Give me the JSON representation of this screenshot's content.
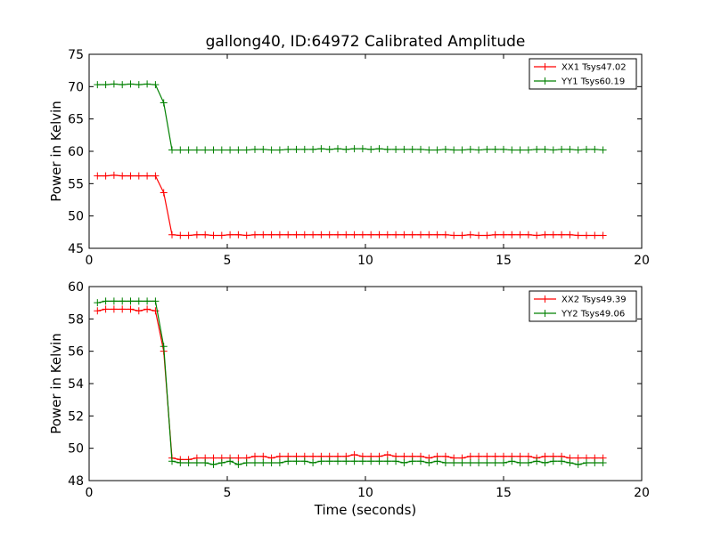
{
  "chart_data": [
    {
      "type": "line",
      "title": "gallong40, ID:64972 Calibrated Amplitude",
      "xlabel": "",
      "ylabel": "Power in Kelvin",
      "xlim": [
        0,
        20
      ],
      "ylim": [
        45,
        75
      ],
      "xticks": [
        "0",
        "5",
        "10",
        "15",
        "20"
      ],
      "yticks": [
        "45",
        "50",
        "55",
        "60",
        "65",
        "70",
        "75"
      ],
      "legend_position": "top-right",
      "x": [
        0.3,
        0.6,
        0.9,
        1.2,
        1.5,
        1.8,
        2.1,
        2.4,
        2.7,
        3.0,
        3.3,
        3.6,
        3.9,
        4.2,
        4.5,
        4.8,
        5.1,
        5.4,
        5.7,
        6.0,
        6.3,
        6.6,
        6.9,
        7.2,
        7.5,
        7.8,
        8.1,
        8.4,
        8.7,
        9.0,
        9.3,
        9.6,
        9.9,
        10.2,
        10.5,
        10.8,
        11.1,
        11.4,
        11.7,
        12.0,
        12.3,
        12.6,
        12.9,
        13.2,
        13.5,
        13.8,
        14.1,
        14.4,
        14.7,
        15.0,
        15.3,
        15.6,
        15.9,
        16.2,
        16.5,
        16.8,
        17.1,
        17.4,
        17.7,
        18.0,
        18.3,
        18.6
      ],
      "series": [
        {
          "name": "XX1 Tsys47.02",
          "color": "#ff0000",
          "values": [
            56.2,
            56.2,
            56.3,
            56.2,
            56.2,
            56.2,
            56.2,
            56.2,
            53.6,
            47.1,
            47.0,
            47.0,
            47.1,
            47.1,
            47.0,
            47.0,
            47.1,
            47.1,
            47.0,
            47.1,
            47.1,
            47.1,
            47.1,
            47.1,
            47.1,
            47.1,
            47.1,
            47.1,
            47.1,
            47.1,
            47.1,
            47.1,
            47.1,
            47.1,
            47.1,
            47.1,
            47.1,
            47.1,
            47.1,
            47.1,
            47.1,
            47.1,
            47.1,
            47.0,
            47.0,
            47.1,
            47.0,
            47.0,
            47.1,
            47.1,
            47.1,
            47.1,
            47.1,
            47.0,
            47.1,
            47.1,
            47.1,
            47.1,
            47.0,
            47.0,
            47.0,
            47.0
          ]
        },
        {
          "name": "YY1 Tsys60.19",
          "color": "#008000",
          "values": [
            70.3,
            70.3,
            70.4,
            70.3,
            70.4,
            70.3,
            70.4,
            70.3,
            67.5,
            60.2,
            60.2,
            60.2,
            60.2,
            60.2,
            60.2,
            60.2,
            60.2,
            60.2,
            60.2,
            60.3,
            60.3,
            60.2,
            60.2,
            60.3,
            60.3,
            60.3,
            60.3,
            60.4,
            60.3,
            60.4,
            60.3,
            60.4,
            60.4,
            60.3,
            60.4,
            60.3,
            60.3,
            60.3,
            60.3,
            60.3,
            60.2,
            60.2,
            60.3,
            60.2,
            60.2,
            60.3,
            60.2,
            60.3,
            60.3,
            60.3,
            60.2,
            60.2,
            60.2,
            60.3,
            60.3,
            60.2,
            60.3,
            60.3,
            60.2,
            60.3,
            60.3,
            60.2
          ]
        }
      ]
    },
    {
      "type": "line",
      "title": "",
      "xlabel": "Time (seconds)",
      "ylabel": "Power in Kelvin",
      "xlim": [
        0,
        20
      ],
      "ylim": [
        48,
        60
      ],
      "xticks": [
        "0",
        "5",
        "10",
        "15",
        "20"
      ],
      "yticks": [
        "48",
        "50",
        "52",
        "54",
        "56",
        "58",
        "60"
      ],
      "legend_position": "top-right",
      "x": [
        0.3,
        0.6,
        0.9,
        1.2,
        1.5,
        1.8,
        2.1,
        2.4,
        2.7,
        3.0,
        3.3,
        3.6,
        3.9,
        4.2,
        4.5,
        4.8,
        5.1,
        5.4,
        5.7,
        6.0,
        6.3,
        6.6,
        6.9,
        7.2,
        7.5,
        7.8,
        8.1,
        8.4,
        8.7,
        9.0,
        9.3,
        9.6,
        9.9,
        10.2,
        10.5,
        10.8,
        11.1,
        11.4,
        11.7,
        12.0,
        12.3,
        12.6,
        12.9,
        13.2,
        13.5,
        13.8,
        14.1,
        14.4,
        14.7,
        15.0,
        15.3,
        15.6,
        15.9,
        16.2,
        16.5,
        16.8,
        17.1,
        17.4,
        17.7,
        18.0,
        18.3,
        18.6
      ],
      "series": [
        {
          "name": "XX2 Tsys49.39",
          "color": "#ff0000",
          "values": [
            58.5,
            58.6,
            58.6,
            58.6,
            58.6,
            58.5,
            58.6,
            58.5,
            56.0,
            49.4,
            49.3,
            49.3,
            49.4,
            49.4,
            49.4,
            49.4,
            49.4,
            49.4,
            49.4,
            49.5,
            49.5,
            49.4,
            49.5,
            49.5,
            49.5,
            49.5,
            49.5,
            49.5,
            49.5,
            49.5,
            49.5,
            49.6,
            49.5,
            49.5,
            49.5,
            49.6,
            49.5,
            49.5,
            49.5,
            49.5,
            49.4,
            49.5,
            49.5,
            49.4,
            49.4,
            49.5,
            49.5,
            49.5,
            49.5,
            49.5,
            49.5,
            49.5,
            49.5,
            49.4,
            49.5,
            49.5,
            49.5,
            49.4,
            49.4,
            49.4,
            49.4,
            49.4
          ]
        },
        {
          "name": "YY2 Tsys49.06",
          "color": "#008000",
          "values": [
            59.0,
            59.1,
            59.1,
            59.1,
            59.1,
            59.1,
            59.1,
            59.1,
            56.3,
            49.2,
            49.1,
            49.1,
            49.1,
            49.1,
            49.0,
            49.1,
            49.2,
            49.0,
            49.1,
            49.1,
            49.1,
            49.1,
            49.1,
            49.2,
            49.2,
            49.2,
            49.1,
            49.2,
            49.2,
            49.2,
            49.2,
            49.2,
            49.2,
            49.2,
            49.2,
            49.2,
            49.2,
            49.1,
            49.2,
            49.2,
            49.1,
            49.2,
            49.1,
            49.1,
            49.1,
            49.1,
            49.1,
            49.1,
            49.1,
            49.1,
            49.2,
            49.1,
            49.1,
            49.2,
            49.1,
            49.2,
            49.2,
            49.1,
            49.0,
            49.1,
            49.1,
            49.1
          ]
        }
      ]
    }
  ]
}
